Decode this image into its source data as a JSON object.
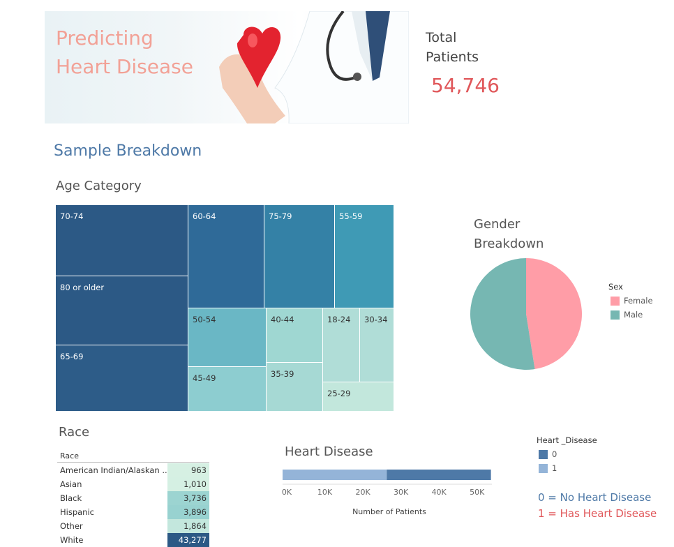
{
  "banner": {
    "title": "Predicting Heart Disease"
  },
  "total": {
    "label": "Total Patients",
    "value": "54,746"
  },
  "section": {
    "title": "Sample Breakdown"
  },
  "colors": {
    "tm_dark": "#2c5985",
    "tm_mid1": "#2f6a98",
    "tm_mid2": "#3481a6",
    "tm_mid3": "#3f9ab5",
    "tm_light1": "#6ab7c5",
    "tm_light2": "#8dcdd0",
    "tm_light3": "#9fd7d2",
    "tm_light4": "#b0ddd7",
    "tm_light5": "#c2e7dc",
    "female": "#ff9da7",
    "male": "#76b7b2",
    "hd0": "#4e79a7",
    "hd1": "#94b4d8",
    "note0": "#4e79a7",
    "note1": "#e0575a"
  },
  "chart_data": [
    {
      "type": "treemap",
      "title": "Age Category",
      "categories": [
        "70-74",
        "80 or older",
        "65-69",
        "60-64",
        "75-79",
        "55-59",
        "50-54",
        "45-49",
        "40-44",
        "35-39",
        "18-24",
        "30-34",
        "25-29"
      ]
    },
    {
      "type": "pie",
      "title": "Gender Breakdown",
      "legend_title": "Sex",
      "labels": [
        "Female",
        "Male"
      ],
      "values": [
        47.5,
        52.5
      ],
      "legend": "right"
    },
    {
      "type": "table",
      "title": "Race",
      "header": "Race",
      "rows": [
        {
          "label": "American Indian/Alaskan ..",
          "value": 963,
          "display": "963"
        },
        {
          "label": "Asian",
          "value": 1010,
          "display": "1,010"
        },
        {
          "label": "Black",
          "value": 3736,
          "display": "3,736"
        },
        {
          "label": "Hispanic",
          "value": 3896,
          "display": "3,896"
        },
        {
          "label": "Other",
          "value": 1864,
          "display": "1,864"
        },
        {
          "label": "White",
          "value": 43277,
          "display": "43,277"
        }
      ]
    },
    {
      "type": "bar",
      "stacked": true,
      "orientation": "horizontal",
      "title": "Heart Disease",
      "xlabel": "Number of Patients",
      "ticks": [
        "0K",
        "10K",
        "20K",
        "30K",
        "40K",
        "50K"
      ],
      "xlim": [
        0,
        55000
      ],
      "legend_title": "Heart _Disease",
      "series": [
        {
          "name": "1",
          "value": 27373
        },
        {
          "name": "0",
          "value": 27373
        }
      ]
    }
  ],
  "notes": {
    "no": "0 = No Heart Disease",
    "yes": "1 = Has Heart Disease"
  }
}
